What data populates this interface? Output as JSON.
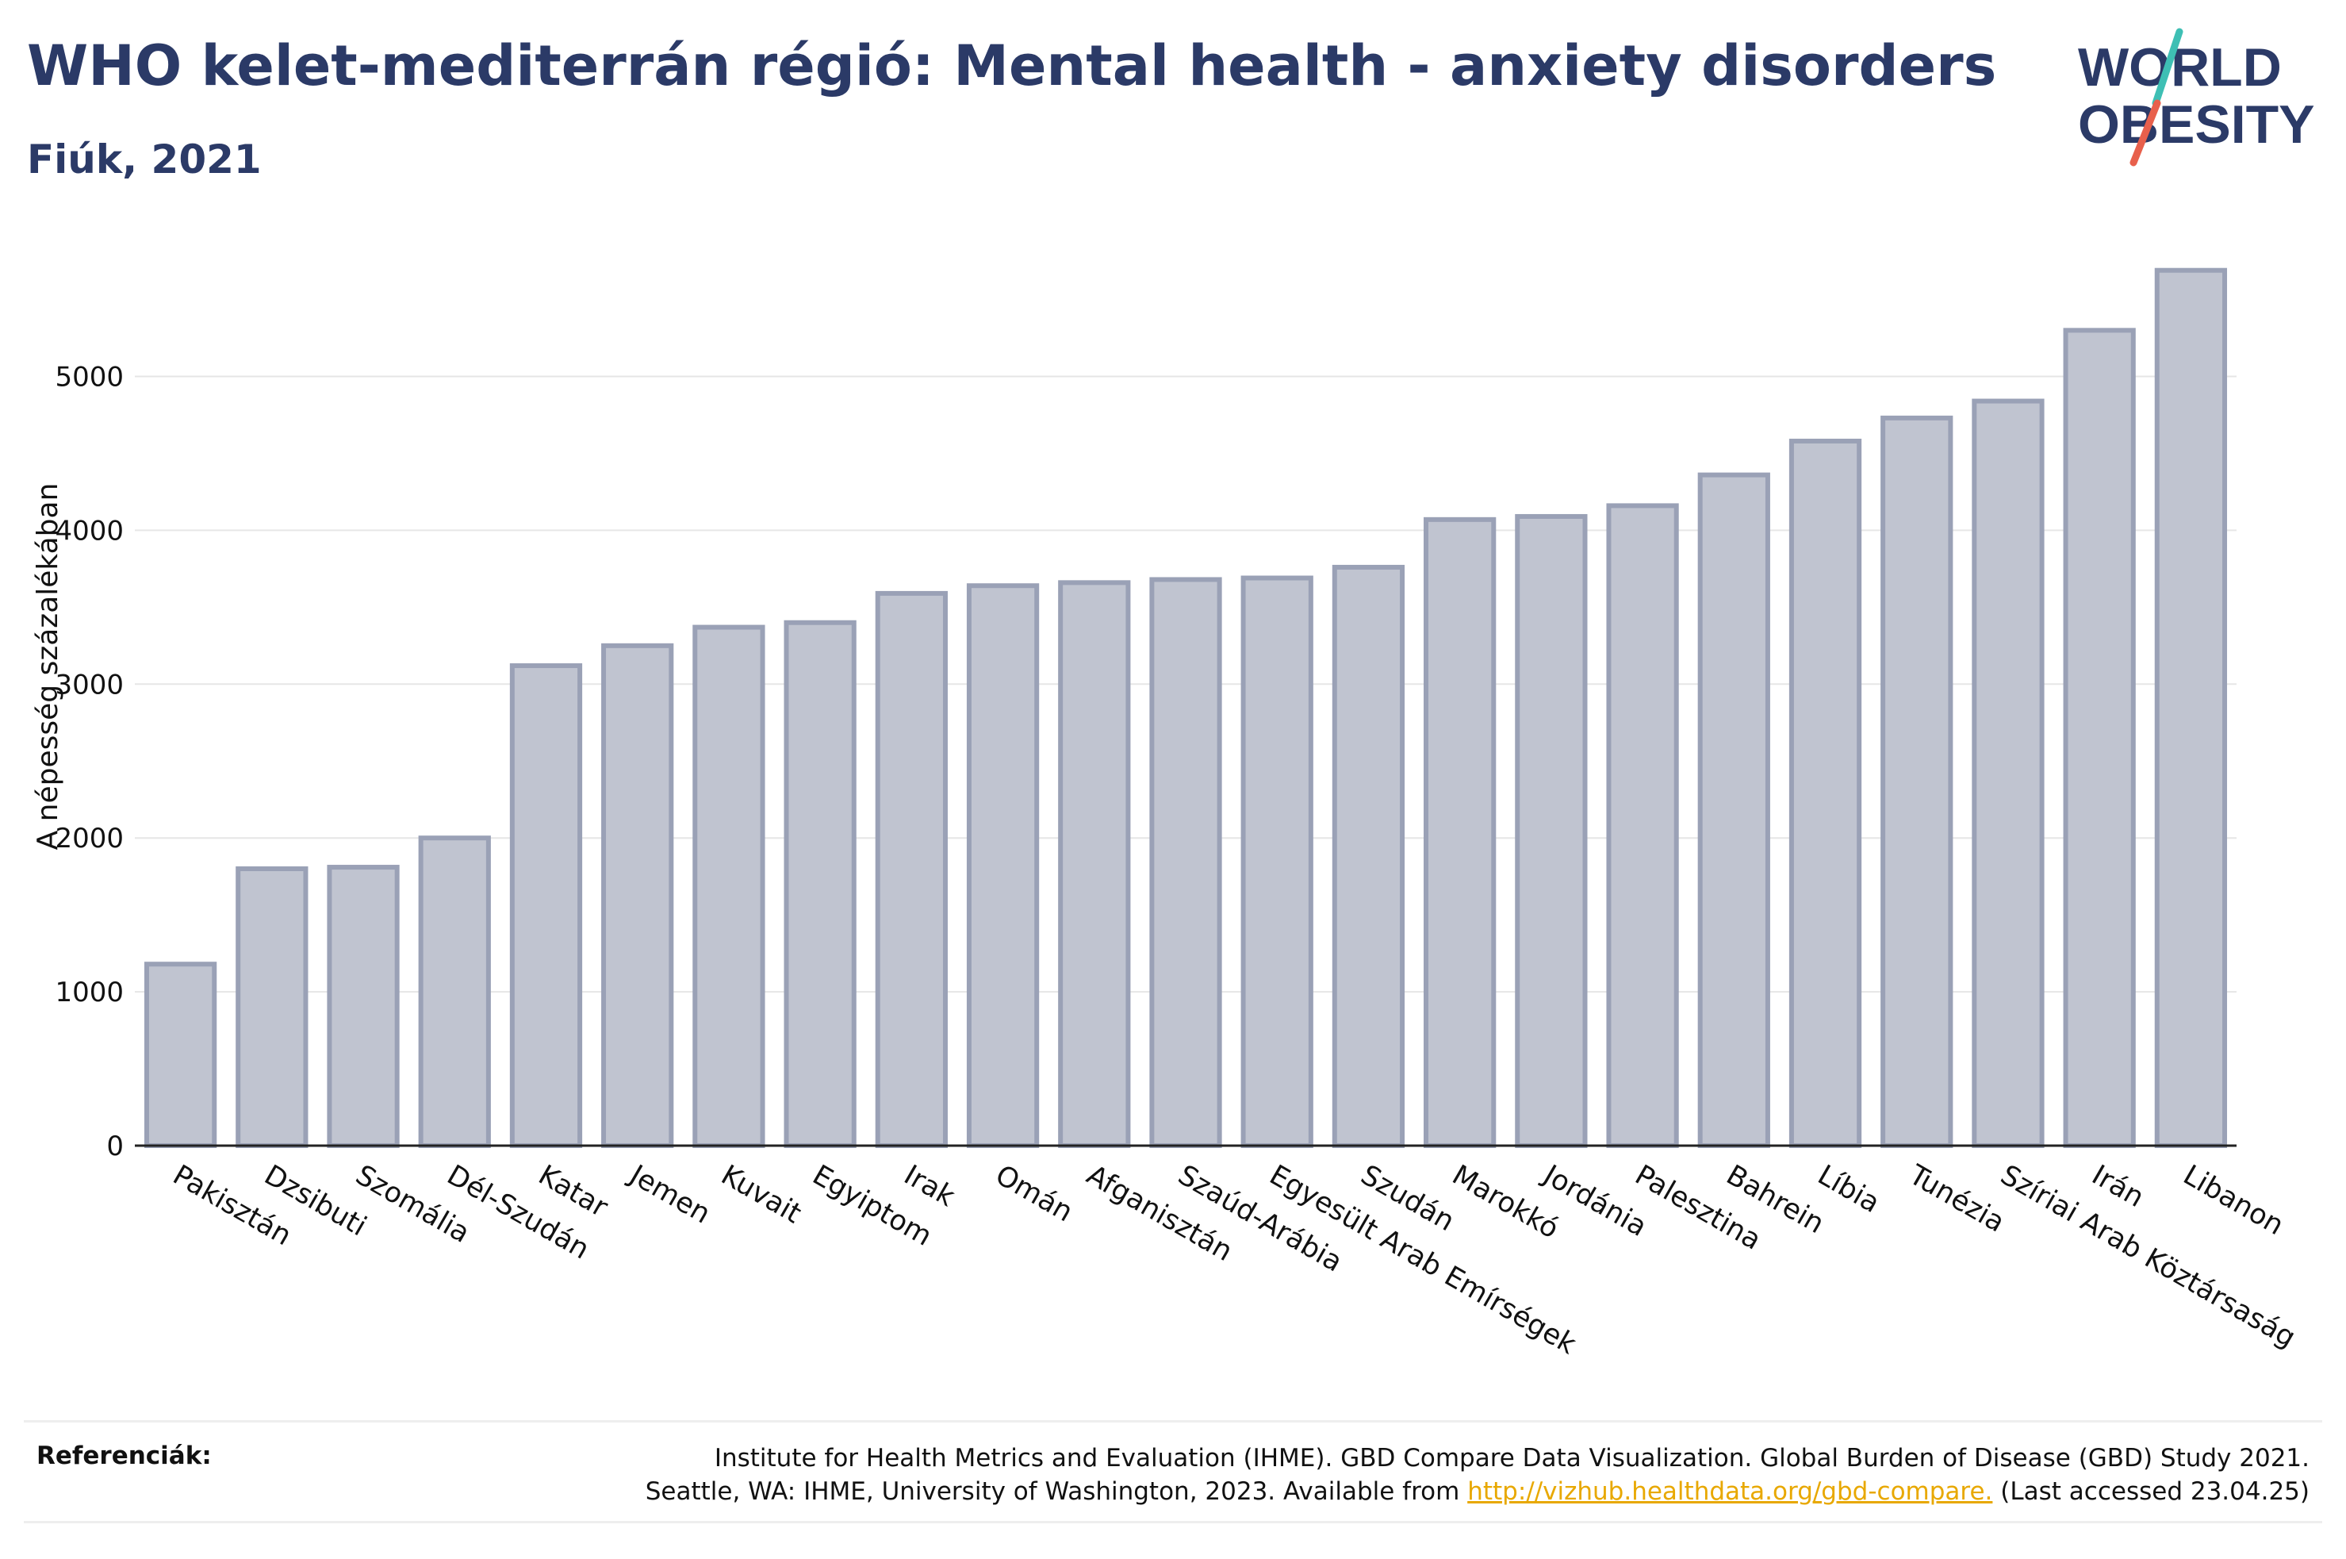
{
  "title": "WHO kelet-mediterrán régió: Mental health - anxiety disorders",
  "subtitle": "Fiúk, 2021",
  "logo": {
    "line1": "WORLD",
    "line2": "OBESITY"
  },
  "colors": {
    "bar_fill": "#c0c4d0",
    "bar_stroke": "#9aa1b6",
    "title": "#2b3a67",
    "logo_teal": "#3ebfb4",
    "logo_red": "#e8604c",
    "link": "#e8a800"
  },
  "chart_data": {
    "type": "bar",
    "ylabel": "A népesség százalékában",
    "xlabel": "",
    "ylim": [
      0,
      5900
    ],
    "yticks": [
      0,
      1000,
      2000,
      3000,
      4000,
      5000
    ],
    "grid": true,
    "categories": [
      "Pakisztán",
      "Dzsibuti",
      "Szomália",
      "Dél-Szudán",
      "Katar",
      "Jemen",
      "Kuvait",
      "Egyiptom",
      "Irak",
      "Omán",
      "Afganisztán",
      "Szaúd-Arábia",
      "Egyesült Arab Emírségek",
      "Szudán",
      "Marokkó",
      "Jordánia",
      "Palesztina",
      "Bahrein",
      "Líbia",
      "Tunézia",
      "Szíriai Arab Köztársaság",
      "Irán",
      "Libanon"
    ],
    "values": [
      1180,
      1800,
      1810,
      2000,
      3120,
      3250,
      3370,
      3400,
      3590,
      3640,
      3660,
      3680,
      3690,
      3760,
      4070,
      4090,
      4160,
      4360,
      4580,
      4730,
      4840,
      5300,
      5690
    ]
  },
  "footer": {
    "ref_label": "Referenciák:",
    "ref_line1": "Institute for Health Metrics and Evaluation (IHME). GBD Compare Data Visualization. Global Burden of Disease (GBD) Study 2021.",
    "ref_line2_pre": "Seattle, WA: IHME, University of Washington, 2023. Available from ",
    "ref_link": "http://vizhub.healthdata.org/gbd-compare.",
    "ref_line2_post": " (Last accessed 23.04.25)"
  }
}
